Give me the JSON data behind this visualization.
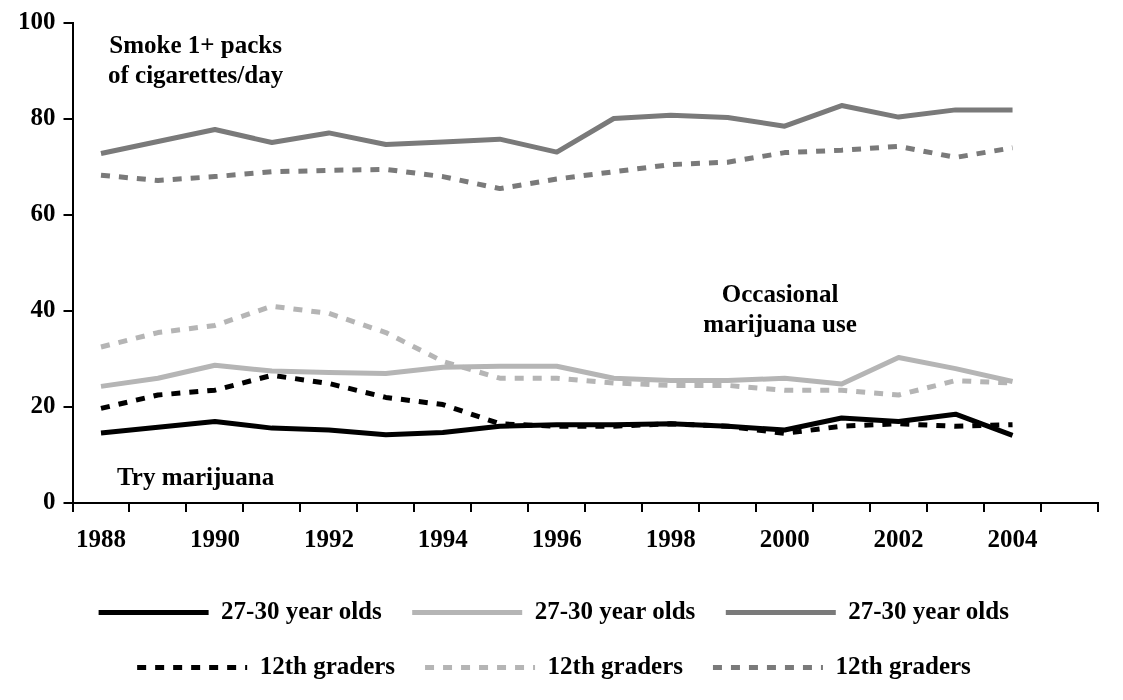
{
  "chart_data": {
    "type": "line",
    "categories": [
      "1988",
      null,
      "1990",
      null,
      "1992",
      null,
      "1994",
      null,
      "1996",
      null,
      "1998",
      null,
      "2000",
      null,
      "2002",
      null,
      "2004",
      null
    ],
    "series": [
      {
        "name": "27-30 year olds",
        "color": "#000000",
        "line_style": "solid",
        "values": [
          14.6,
          15.8,
          17,
          15.6,
          15.2,
          14.2,
          14.7,
          16,
          16.3,
          16.3,
          16.5,
          16,
          15.2,
          17.7,
          17,
          18.5,
          14.1,
          null
        ]
      },
      {
        "name": "27-30 year olds",
        "color": "#b5b5b5",
        "line_style": "solid",
        "values": [
          24.3,
          26,
          28.7,
          27.5,
          27.2,
          27,
          28.3,
          28.5,
          28.5,
          26,
          25.5,
          25.5,
          26,
          24.8,
          30.3,
          28,
          25.3,
          null
        ]
      },
      {
        "name": "27-30 year olds",
        "color": "#7a7a7a",
        "line_style": "solid",
        "values": [
          72.8,
          75.3,
          77.8,
          75.1,
          77.1,
          74.7,
          75.2,
          75.8,
          73.1,
          80.1,
          80.8,
          80.3,
          78.5,
          82.8,
          80.4,
          81.9,
          81.9,
          null
        ]
      },
      {
        "name": "12th graders",
        "color": "#000000",
        "line_style": "dashed",
        "values": [
          19.7,
          22.5,
          23.5,
          26.6,
          24.9,
          22,
          20.5,
          16.5,
          16,
          16,
          16.5,
          16,
          14.5,
          16,
          16.5,
          16,
          16.3,
          null
        ]
      },
      {
        "name": "12th graders",
        "color": "#b5b5b5",
        "line_style": "dashed",
        "values": [
          32.5,
          35.5,
          37,
          41,
          39.5,
          35.5,
          29.5,
          26,
          26,
          25,
          24.5,
          24.5,
          23.5,
          23.5,
          22.5,
          25.5,
          25,
          null
        ]
      },
      {
        "name": "12th graders",
        "color": "#7a7a7a",
        "line_style": "dashed",
        "values": [
          68.3,
          67.2,
          68,
          69,
          69.3,
          69.5,
          68,
          65.5,
          67.5,
          69,
          70.5,
          71,
          73,
          73.5,
          74.3,
          72,
          74,
          null
        ]
      }
    ],
    "ylim": [
      0,
      100
    ],
    "yticks": [
      0,
      20,
      40,
      60,
      80,
      100
    ],
    "grid": false,
    "legend": "bottom",
    "marker": "none",
    "annotations": [
      "Smoke 1+ packs\nof cigarettes/day",
      "Occasional\nmarijuana use",
      "Try marijuana"
    ]
  }
}
